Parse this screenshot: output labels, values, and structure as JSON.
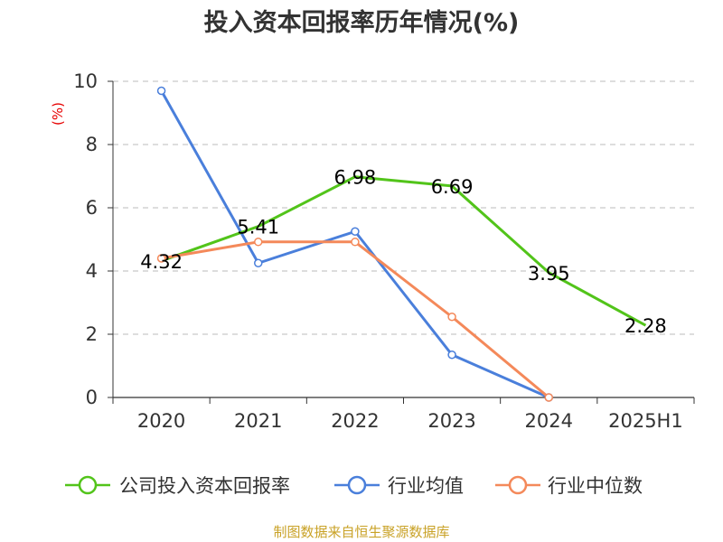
{
  "chart_data": {
    "type": "line",
    "title": "投入资本回报率历年情况(%)",
    "ylabel": "(%)",
    "xlabel": "",
    "categories": [
      "2020",
      "2021",
      "2022",
      "2023",
      "2024",
      "2025H1"
    ],
    "ylim": [
      0,
      10
    ],
    "yticks": [
      0,
      2,
      4,
      6,
      8,
      10
    ],
    "grid": true,
    "legend_position": "bottom",
    "series": [
      {
        "name": "公司投入资本回报率",
        "color": "#52c41a",
        "values": [
          4.32,
          5.41,
          6.98,
          6.69,
          3.95,
          2.28
        ],
        "labels": [
          "4.32",
          "5.41",
          "6.98",
          "6.69",
          "3.95",
          "2.28"
        ]
      },
      {
        "name": "行业均值",
        "color": "#4a7fdb",
        "values": [
          9.7,
          4.25,
          5.25,
          1.35,
          0.0,
          null
        ]
      },
      {
        "name": "行业中位数",
        "color": "#f4895a",
        "values": [
          4.4,
          4.92,
          4.92,
          2.55,
          0.0,
          null
        ]
      }
    ]
  },
  "source": "制图数据来自恒生聚源数据库"
}
